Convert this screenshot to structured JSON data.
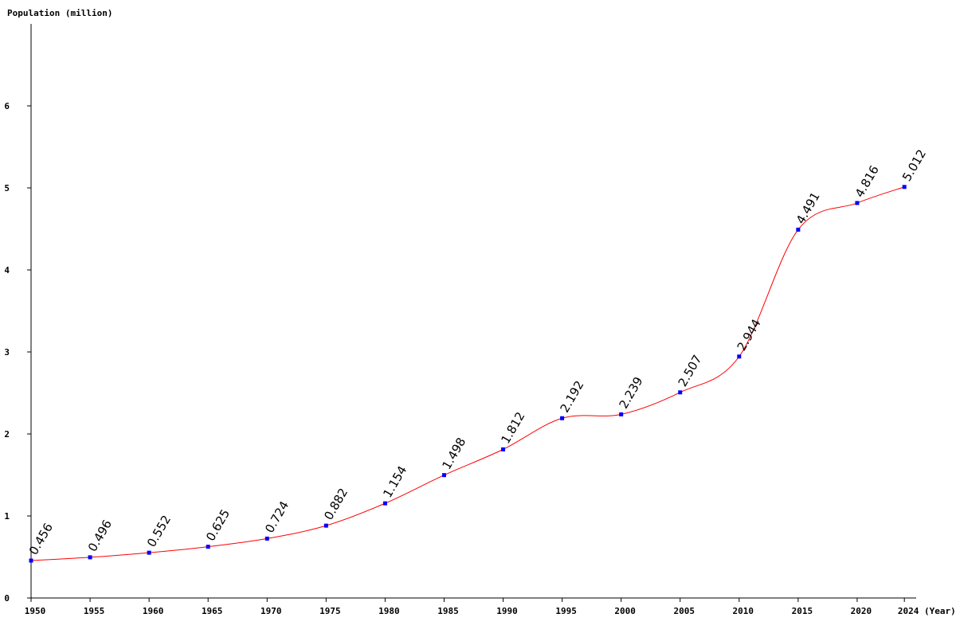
{
  "chart_data": {
    "type": "line",
    "y_label": "Population (million)",
    "x_label": "(Year)",
    "x": [
      1950,
      1955,
      1960,
      1965,
      1970,
      1975,
      1980,
      1985,
      1990,
      1995,
      2000,
      2005,
      2010,
      2015,
      2020,
      2024
    ],
    "series": [
      {
        "color": "#ff0000",
        "marker_color": "#0000ff",
        "values": [
          0.456,
          0.496,
          0.552,
          0.625,
          0.724,
          0.882,
          1.154,
          1.498,
          1.812,
          2.192,
          2.239,
          2.507,
          2.944,
          4.491,
          4.816,
          5.012
        ]
      }
    ],
    "xlim": [
      1950,
      2025
    ],
    "ylim": [
      0,
      7
    ],
    "xticks": [
      1950,
      1955,
      1960,
      1965,
      1970,
      1975,
      1980,
      1985,
      1990,
      1995,
      2000,
      2005,
      2010,
      2015,
      2020,
      2024
    ],
    "yticks": [
      0,
      1,
      2,
      3,
      4,
      5,
      6
    ]
  }
}
